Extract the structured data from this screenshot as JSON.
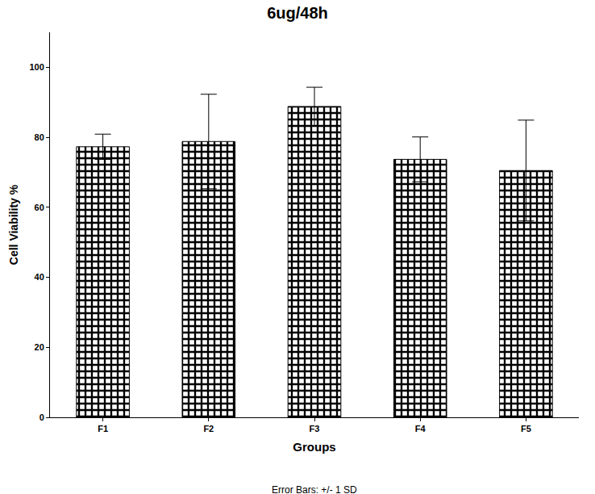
{
  "chart_data": {
    "type": "bar",
    "title": "6ug/48h",
    "x_label": "Groups",
    "y_label": "Cell Viability %",
    "caption": "Error Bars: +/- 1 SD",
    "categories": [
      "F1",
      "F2",
      "F3",
      "F4",
      "F5"
    ],
    "values": [
      77.3,
      78.8,
      88.8,
      73.7,
      70.5
    ],
    "errors": [
      3.6,
      13.5,
      5.5,
      6.4,
      14.4
    ],
    "color": "#000000",
    "ylim": [
      0,
      110
    ],
    "yticks": [
      0,
      20,
      40,
      60,
      80,
      100
    ],
    "grid": false
  }
}
